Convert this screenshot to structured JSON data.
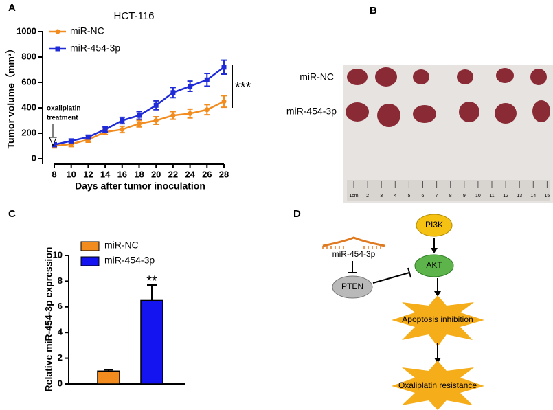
{
  "panels": [
    "A",
    "B",
    "C",
    "D"
  ],
  "chart_data": [
    {
      "type": "line",
      "title": "HCT-116",
      "xlabel": "Days after tumor inoculation",
      "ylabel": "Tumor volume（mm³）",
      "x": [
        8,
        10,
        12,
        14,
        16,
        18,
        20,
        22,
        24,
        26,
        28
      ],
      "series": [
        {
          "name": "miR-NC",
          "color": "#f28c1e",
          "values": [
            100,
            115,
            150,
            210,
            230,
            275,
            300,
            340,
            355,
            385,
            450
          ],
          "errors": [
            15,
            20,
            20,
            20,
            25,
            25,
            30,
            30,
            35,
            40,
            45
          ]
        },
        {
          "name": "miR-454-3p",
          "color": "#1f2bd6",
          "values": [
            110,
            140,
            170,
            230,
            300,
            340,
            420,
            520,
            570,
            620,
            720
          ],
          "errors": [
            15,
            15,
            15,
            20,
            25,
            30,
            35,
            40,
            40,
            50,
            55
          ]
        }
      ],
      "xlim": [
        8,
        28
      ],
      "xticks": [
        8,
        10,
        12,
        14,
        16,
        18,
        20,
        22,
        24,
        26,
        28
      ],
      "ylim": [
        0,
        1000
      ],
      "yticks": [
        0,
        200,
        400,
        600,
        800,
        1000
      ],
      "annotations": [
        "oxaliplatin",
        "treatment",
        "***"
      ]
    },
    {
      "type": "bar",
      "ylabel": "Relative miR-454-3p expression",
      "categories": [
        "miR-NC",
        "miR-454-3p"
      ],
      "values": [
        1.0,
        6.5
      ],
      "errors": [
        0.1,
        1.2
      ],
      "colors": [
        "#f28c1e",
        "#1414f0"
      ],
      "ylim": [
        0,
        10
      ],
      "yticks": [
        0,
        2,
        4,
        6,
        8,
        10
      ],
      "annotations": [
        "**"
      ]
    }
  ],
  "photo": {
    "labels": [
      "miR-NC",
      "miR-454-3p"
    ],
    "ruler": [
      "1cm",
      "2",
      "3",
      "4",
      "5",
      "6",
      "7",
      "8",
      "9",
      "10",
      "11",
      "12",
      "13",
      "14",
      "15"
    ]
  },
  "diagram": {
    "nodes": [
      "PI3K",
      "AKT",
      "miR-454-3p",
      "PTEN",
      "Apoptosis inhibition",
      "Oxaliplatin resistance"
    ]
  }
}
